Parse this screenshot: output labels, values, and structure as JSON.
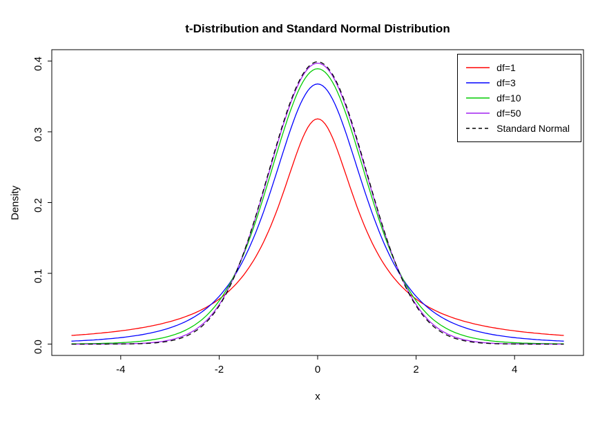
{
  "figure": {
    "title": "t-Distribution and Standard Normal Distribution",
    "x_axis_label": "x",
    "y_axis_label": "Density"
  },
  "chart_data": {
    "type": "line",
    "title": "t-Distribution and Standard Normal Distribution",
    "xlabel": "x",
    "ylabel": "Density",
    "xlim": [
      -5.4,
      5.4
    ],
    "ylim": [
      -0.016,
      0.416
    ],
    "x_data_range": [
      -5,
      5
    ],
    "y_data_range": [
      0,
      0.4
    ],
    "grid": false,
    "x_ticks": {
      "values": [
        -4,
        -2,
        0,
        2,
        4
      ],
      "labels": [
        "-4",
        "-2",
        "0",
        "2",
        "4"
      ]
    },
    "y_ticks": {
      "values": [
        0,
        0.1,
        0.2,
        0.3,
        0.4
      ],
      "labels": [
        "0.0",
        "0.1",
        "0.2",
        "0.3",
        "0.4"
      ]
    },
    "legend": {
      "position": "top-right",
      "border": true
    },
    "sample_x": {
      "min": -5,
      "max": 5,
      "step": 0.05
    },
    "series": [
      {
        "label": "df=1",
        "color": "#FF0000",
        "line_style": "solid",
        "distribution": "t",
        "df": 1,
        "peak_density": 0.3183
      },
      {
        "label": "df=3",
        "color": "#0000FF",
        "line_style": "solid",
        "distribution": "t",
        "df": 3,
        "peak_density": 0.3676
      },
      {
        "label": "df=10",
        "color": "#00CC00",
        "line_style": "solid",
        "distribution": "t",
        "df": 10,
        "peak_density": 0.3891
      },
      {
        "label": "df=50",
        "color": "#A020F0",
        "line_style": "solid",
        "distribution": "t",
        "df": 50,
        "peak_density": 0.397
      },
      {
        "label": "Standard Normal",
        "color": "#000000",
        "line_style": "dashed",
        "distribution": "normal",
        "peak_density": 0.3989
      }
    ]
  }
}
